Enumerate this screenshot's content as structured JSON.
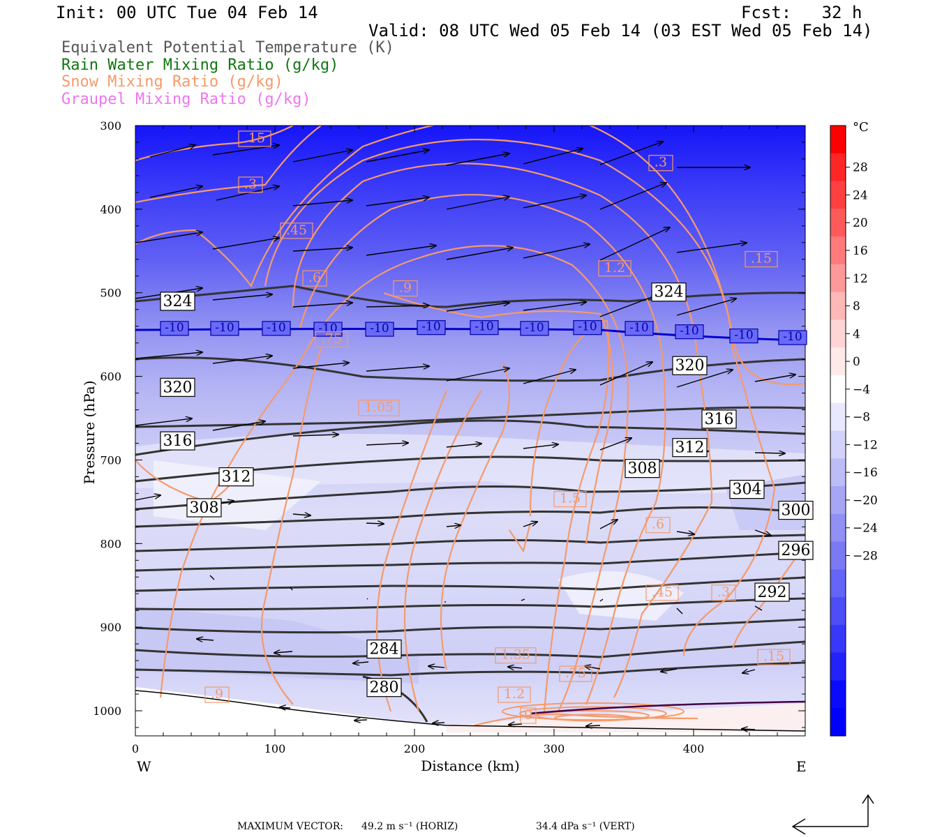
{
  "header": {
    "init": "Init: 00 UTC Tue 04 Feb 14",
    "fcst": "Fcst:   32 h",
    "valid": "Valid: 08 UTC Wed 05 Feb 14 (03 EST Wed 05 Feb 14)"
  },
  "legend": [
    {
      "label": "Equivalent Potential Temperature (K)",
      "color": "#555555"
    },
    {
      "label": "Rain Water Mixing Ratio (g/kg)",
      "color": "#117711"
    },
    {
      "label": "Snow Mixing Ratio (g/kg)",
      "color": "#f59a6a"
    },
    {
      "label": "Graupel Mixing Ratio (g/kg)",
      "color": "#ee77ee"
    }
  ],
  "chart_data": {
    "type": "contour",
    "xlabel": "Distance (km)",
    "ylabel": "Pressure (hPa)",
    "xlim": [
      0,
      480
    ],
    "ylim": [
      1030,
      300
    ],
    "x_ticks": [
      0,
      100,
      200,
      300,
      400
    ],
    "y_ticks": [
      300,
      400,
      500,
      600,
      700,
      800,
      900,
      1000
    ],
    "left_end_label": "W",
    "right_end_label": "E",
    "colorbar": {
      "unit": "°C",
      "ticks": [
        "28",
        "24",
        "20",
        "16",
        "12",
        "8",
        "4",
        "0",
        "−4",
        "−8",
        "−12",
        "−16",
        "−20",
        "−24",
        "−28"
      ],
      "colors": [
        "#ff0000",
        "#ff2626",
        "#ff4040",
        "#ff5a5a",
        "#ff7a7a",
        "#ff9999",
        "#ffb8b8",
        "#ffd4d4",
        "#ffeaea",
        "#ffffff",
        "#e8e8ff",
        "#d2d2fb",
        "#bcbcf7",
        "#a6a6f5",
        "#9090f5",
        "#7a7af5",
        "#6464f7",
        "#4e4ef8",
        "#3838fa",
        "#2222fc",
        "#0a0aff",
        "#0000ff"
      ]
    },
    "theta_e_labels": [
      {
        "text": "324",
        "x": 18,
        "p": 516
      },
      {
        "text": "324",
        "x": 370,
        "p": 505
      },
      {
        "text": "320",
        "x": 18,
        "p": 619
      },
      {
        "text": "320",
        "x": 385,
        "p": 593
      },
      {
        "text": "316",
        "x": 18,
        "p": 683
      },
      {
        "text": "316",
        "x": 406,
        "p": 657
      },
      {
        "text": "312",
        "x": 60,
        "p": 726
      },
      {
        "text": "312",
        "x": 385,
        "p": 691
      },
      {
        "text": "308",
        "x": 37,
        "p": 763
      },
      {
        "text": "308",
        "x": 351,
        "p": 716
      },
      {
        "text": "304",
        "x": 426,
        "p": 741
      },
      {
        "text": "300",
        "x": 461,
        "p": 766
      },
      {
        "text": "296",
        "x": 461,
        "p": 814
      },
      {
        "text": "292",
        "x": 444,
        "p": 864
      },
      {
        "text": "284",
        "x": 166,
        "p": 932
      },
      {
        "text": "280",
        "x": 166,
        "p": 978
      }
    ],
    "isotherm_labels": [
      {
        "text": "-10",
        "x": 18,
        "p": 546
      },
      {
        "text": "-10",
        "x": 54,
        "p": 546
      },
      {
        "text": "-10",
        "x": 91,
        "p": 546
      },
      {
        "text": "-10",
        "x": 128,
        "p": 547
      },
      {
        "text": "-10",
        "x": 165,
        "p": 547
      },
      {
        "text": "-10",
        "x": 202,
        "p": 545
      },
      {
        "text": "-10",
        "x": 240,
        "p": 545
      },
      {
        "text": "-10",
        "x": 276,
        "p": 546
      },
      {
        "text": "-10",
        "x": 314,
        "p": 545
      },
      {
        "text": "-10",
        "x": 351,
        "p": 546
      },
      {
        "text": "-10",
        "x": 387,
        "p": 550
      },
      {
        "text": "-10",
        "x": 426,
        "p": 555
      },
      {
        "text": "-10",
        "x": 461,
        "p": 557
      }
    ],
    "snow_labels": [
      {
        "text": ".15",
        "x": 74,
        "p": 320
      },
      {
        "text": ".3",
        "x": 74,
        "p": 375
      },
      {
        "text": ".45",
        "x": 104,
        "p": 430
      },
      {
        "text": ".6",
        "x": 120,
        "p": 487
      },
      {
        "text": ".9",
        "x": 185,
        "p": 499
      },
      {
        "text": ".75",
        "x": 129,
        "p": 560
      },
      {
        "text": "1.05",
        "x": 160,
        "p": 642
      },
      {
        "text": "1.2",
        "x": 332,
        "p": 475
      },
      {
        "text": ".3",
        "x": 368,
        "p": 349
      },
      {
        "text": ".15",
        "x": 437,
        "p": 464
      },
      {
        "text": "1.5",
        "x": 300,
        "p": 751
      },
      {
        "text": ".6",
        "x": 366,
        "p": 782
      },
      {
        "text": ".45",
        "x": 366,
        "p": 863
      },
      {
        "text": ".3",
        "x": 413,
        "p": 863
      },
      {
        "text": "1.35",
        "x": 258,
        "p": 938
      },
      {
        "text": "1.2",
        "x": 260,
        "p": 985
      },
      {
        "text": ".75",
        "x": 304,
        "p": 960
      },
      {
        "text": ".15",
        "x": 446,
        "p": 940
      },
      {
        "text": ".9",
        "x": 50,
        "p": 985
      },
      {
        "text": "0",
        "x": 276,
        "p": 1010
      }
    ],
    "max_vector_label": "MAXIMUM VECTOR:",
    "max_vector_horiz": "49.2 m s⁻¹ (HORIZ)",
    "max_vector_vert": "34.4 dPa s⁻¹ (VERT)"
  }
}
